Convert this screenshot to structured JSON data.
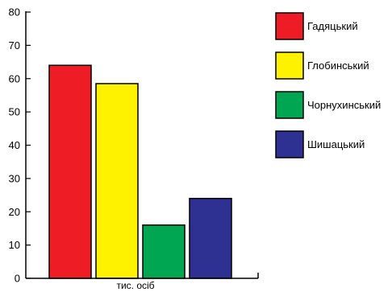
{
  "chart_data": {
    "type": "bar",
    "title": "",
    "xlabel": "тис. осіб",
    "ylabel": "",
    "ylim": [
      0,
      80
    ],
    "yticks": [
      0,
      10,
      20,
      30,
      40,
      50,
      60,
      70,
      80
    ],
    "grid": false,
    "legend_position": "right",
    "categories": [
      "Гадяцький",
      "Глобинський",
      "Чорнухинський",
      "Шишацький"
    ],
    "values": [
      64,
      58.5,
      16,
      24
    ],
    "colors": [
      "#ee1c25",
      "#fff200",
      "#00a651",
      "#2e3192"
    ]
  }
}
